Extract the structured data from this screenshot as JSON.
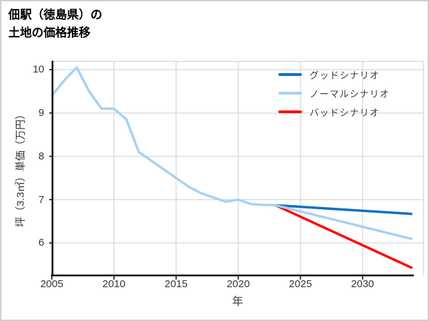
{
  "window": {
    "background": "#ffffff",
    "border_color": "#cfcfcf"
  },
  "title": {
    "line1": "佃駅（徳島県）の",
    "line2": "土地の価格推移"
  },
  "chart_data": {
    "type": "line",
    "title": "佃駅（徳島県）の土地の価格推移",
    "xlabel": "年",
    "ylabel": "坪（3.3㎡）単価（万円）",
    "x_ticks": [
      2005,
      2010,
      2015,
      2020,
      2025,
      2030
    ],
    "y_ticks": [
      6,
      7,
      8,
      9,
      10
    ],
    "xlim": [
      2005,
      2034.9
    ],
    "ylim": [
      5.25,
      10.19
    ],
    "grid": true,
    "grid_color": "#dadada",
    "spine_color": "#000000",
    "legend_position": "upper right",
    "series": [
      {
        "name": "グッドシナリオ",
        "color": "#1170c2",
        "x": [
          2023,
          2034
        ],
        "values": [
          6.87,
          6.67
        ]
      },
      {
        "name": "ノーマルシナリオ",
        "color": "#a6d1f5",
        "x": [
          2005,
          2006,
          2007,
          2008,
          2009,
          2010,
          2011,
          2012,
          2013,
          2014,
          2015,
          2016,
          2017,
          2018,
          2019,
          2020,
          2021,
          2022,
          2023,
          2034
        ],
        "values": [
          9.4,
          9.75,
          10.05,
          9.5,
          9.1,
          9.1,
          8.85,
          8.1,
          7.9,
          7.7,
          7.5,
          7.3,
          7.15,
          7.05,
          6.95,
          7.0,
          6.9,
          6.88,
          6.87,
          6.09
        ]
      },
      {
        "name": "バッドシナリオ",
        "color": "#ff0000",
        "x": [
          2023,
          2034
        ],
        "values": [
          6.87,
          5.42
        ]
      }
    ]
  }
}
